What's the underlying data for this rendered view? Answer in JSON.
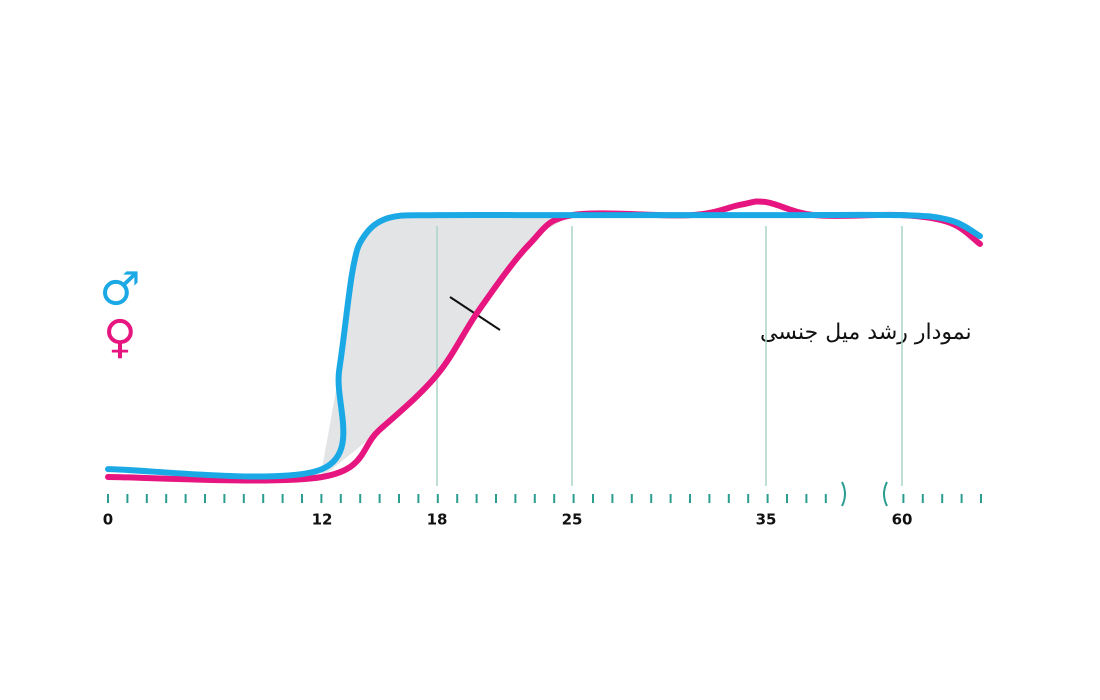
{
  "chart_data": {
    "type": "line",
    "annotation": "نمودار رشد میل جنسی",
    "xlim": [
      0,
      64
    ],
    "xticks": [
      0,
      12,
      18,
      25,
      35,
      60
    ],
    "ylim": [
      0,
      110
    ],
    "grid": true,
    "series": [
      {
        "name": "♂",
        "color": "#1ba9e6",
        "x": [
          0,
          12,
          12.9,
          13.6,
          14.2,
          15.5,
          18,
          25,
          35,
          60,
          62.5,
          64
        ],
        "values": [
          3,
          3,
          41,
          79,
          92,
          99,
          100,
          100,
          100,
          100,
          98,
          92
        ]
      },
      {
        "name": "♀",
        "color": "#e6157f",
        "x": [
          0,
          12,
          15,
          18,
          20.2,
          22.8,
          25,
          31.1,
          33.7,
          35,
          44,
          60,
          62.5,
          64
        ],
        "values": [
          0,
          0,
          18,
          39,
          64,
          89,
          100,
          100,
          104,
          105,
          100,
          100,
          97,
          89
        ]
      }
    ]
  }
}
